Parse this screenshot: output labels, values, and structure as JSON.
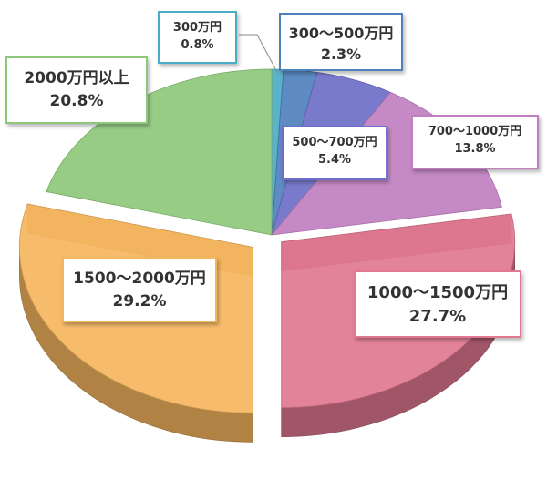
{
  "chart_data": {
    "type": "pie",
    "title": "",
    "categories": [
      "300万円",
      "300〜500万円",
      "500〜700万円",
      "700〜1000万円",
      "1000〜1500万円",
      "1500〜2000万円",
      "2000万円以上"
    ],
    "values": [
      0.8,
      2.3,
      5.4,
      13.8,
      27.7,
      29.2,
      20.8
    ],
    "value_labels": [
      "0.8%",
      "2.3%",
      "5.4%",
      "13.8%",
      "27.7%",
      "29.2%",
      "20.8%"
    ],
    "colors": [
      "#4bacc6",
      "#4f81bd",
      "#6f6fc9",
      "#c080c0",
      "#e07890",
      "#f5b660",
      "#8dc87a"
    ],
    "style": "3d-exploded-pie"
  }
}
